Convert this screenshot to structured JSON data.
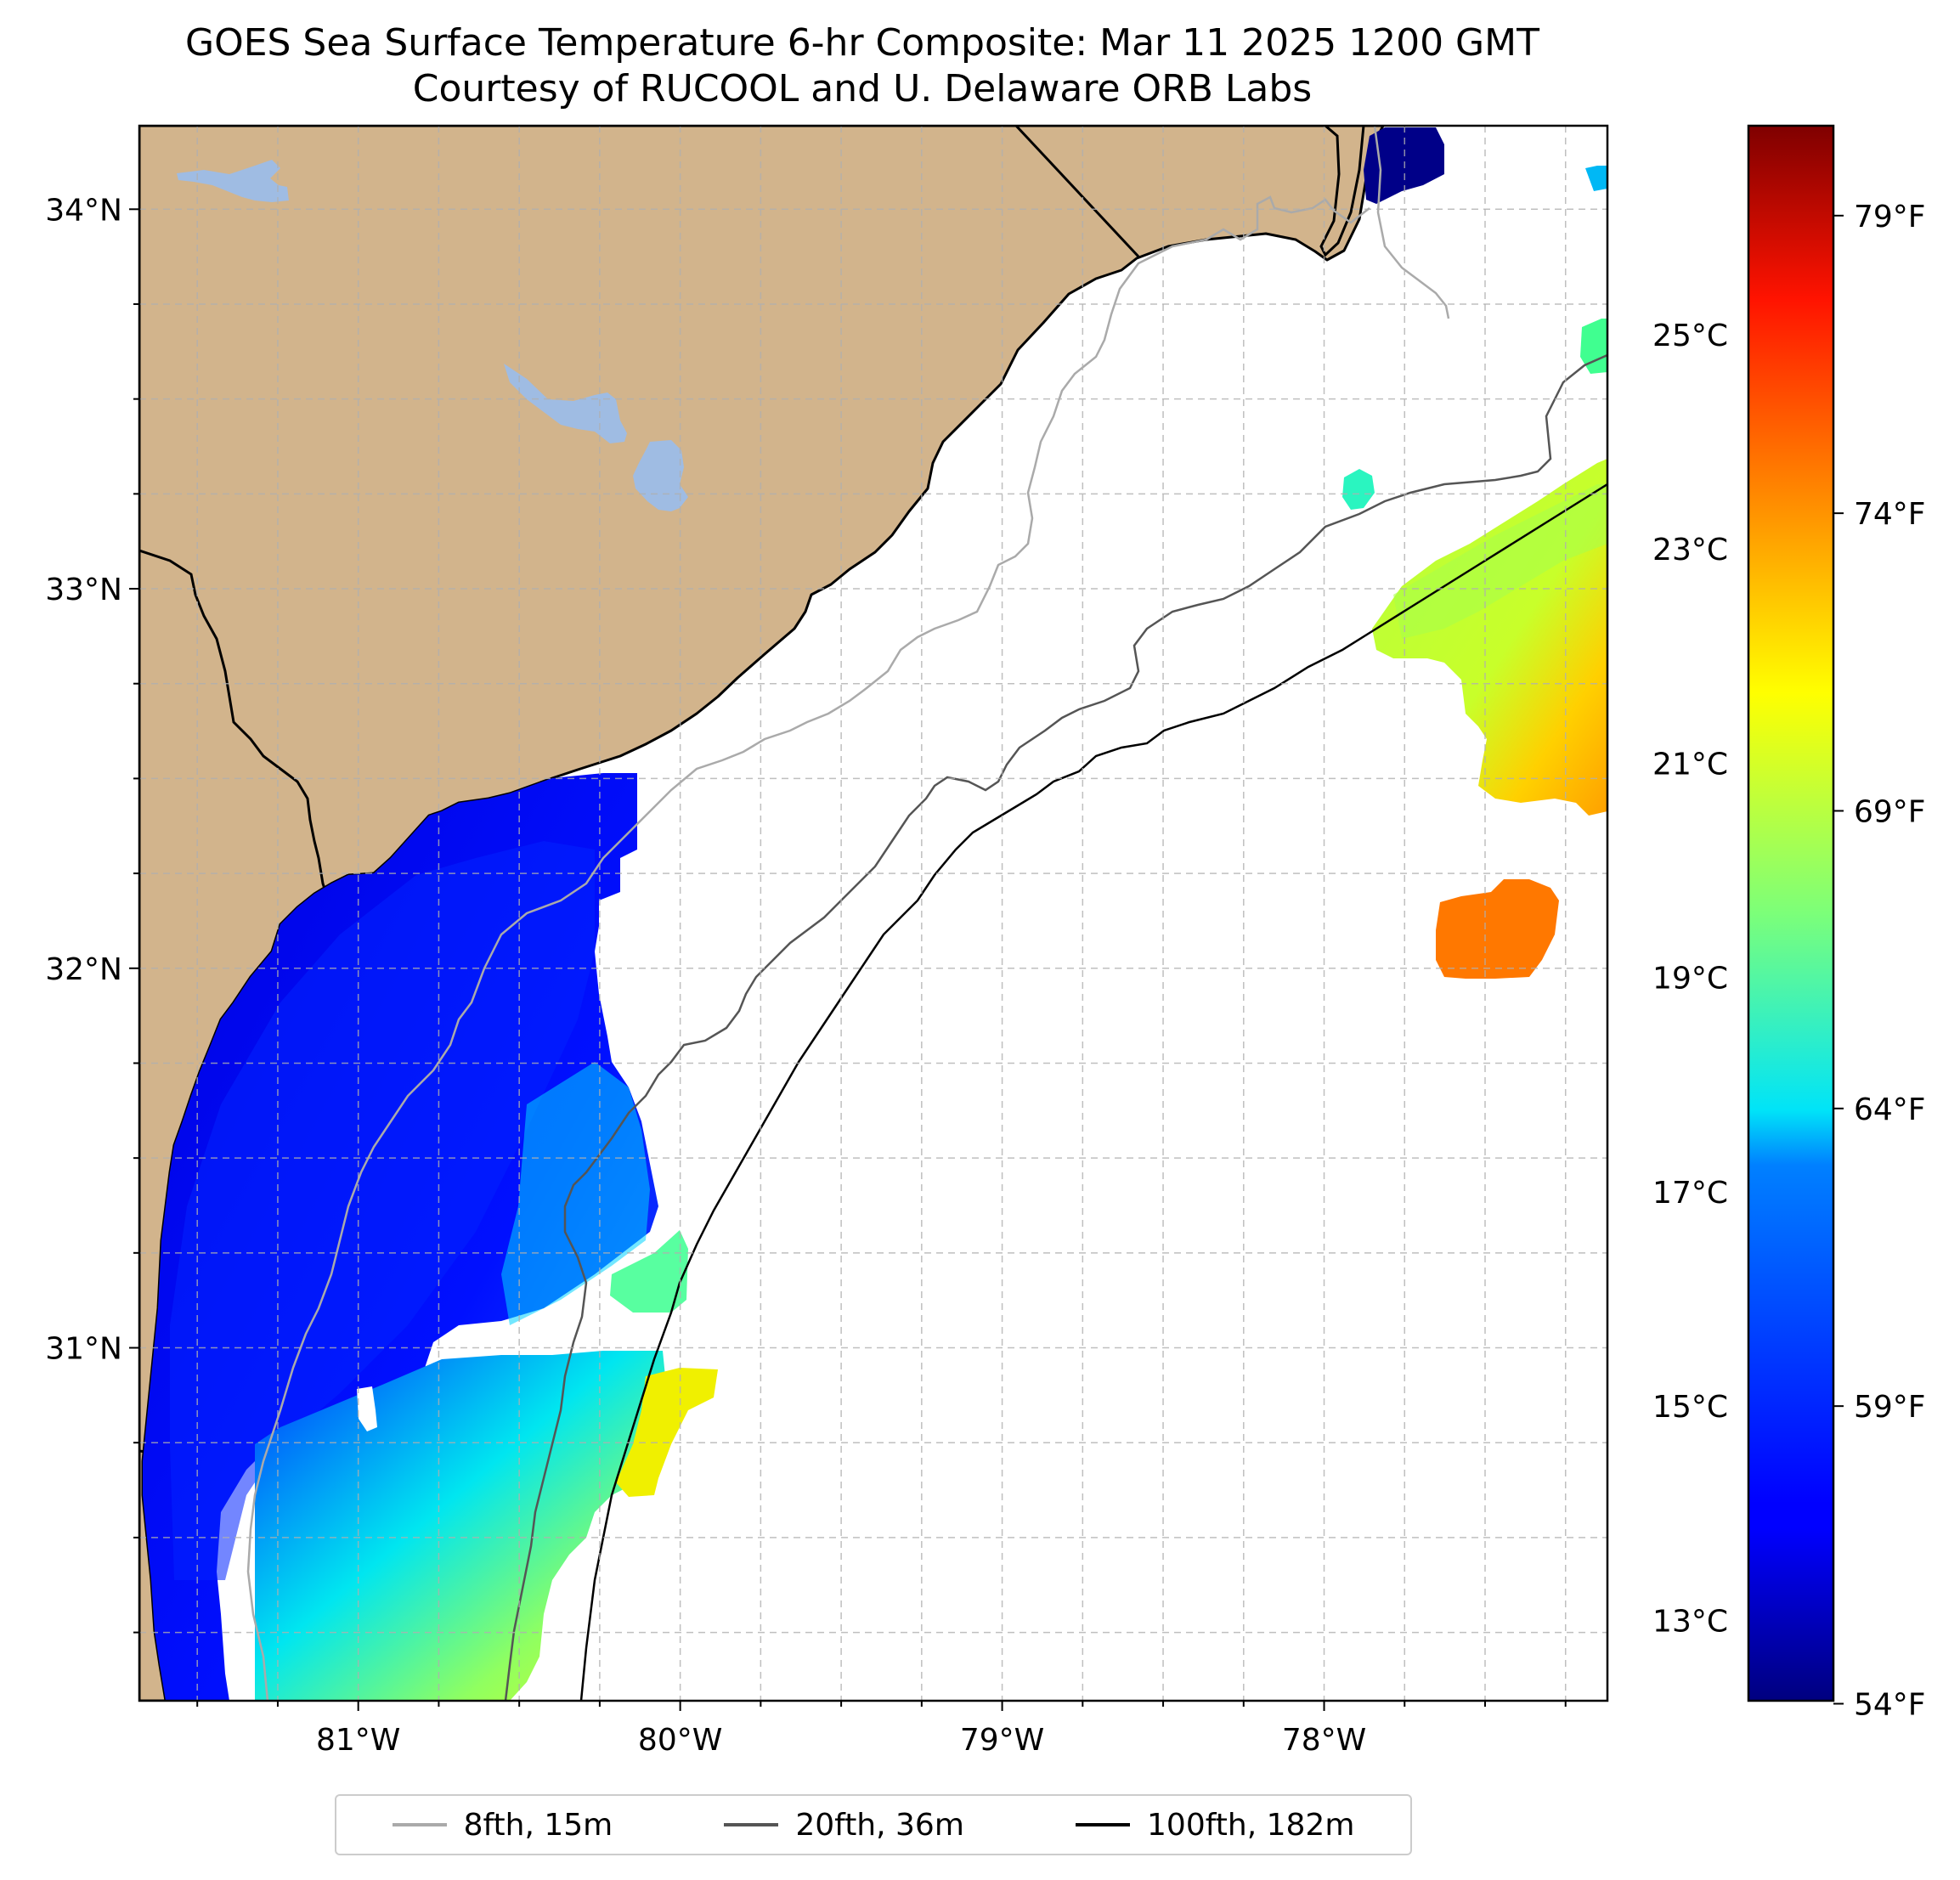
{
  "title": {
    "line1": "GOES Sea Surface Temperature 6-hr Composite: Mar 11 2025 1200 GMT",
    "line2": "Courtesy of RUCOOL and U. Delaware ORB Labs"
  },
  "map": {
    "lon_range": [
      -81.68,
      -77.12
    ],
    "lat_range": [
      30.07,
      34.22
    ],
    "lon_ticks": [
      {
        "value": -81,
        "label": "81°W"
      },
      {
        "value": -80,
        "label": "80°W"
      },
      {
        "value": -79,
        "label": "79°W"
      },
      {
        "value": -78,
        "label": "78°W"
      }
    ],
    "lat_ticks": [
      {
        "value": 34,
        "label": "34°N"
      },
      {
        "value": 33,
        "label": "33°N"
      },
      {
        "value": 32,
        "label": "32°N"
      },
      {
        "value": 31,
        "label": "31°N"
      }
    ],
    "gridlines": true,
    "colors": {
      "land": "#d2b48c",
      "lakes": "#9fbce3",
      "ocean": "#ffffff",
      "contour_8fth": "#aaaaaa",
      "contour_20fth": "#555555",
      "contour_100fth": "#000000"
    }
  },
  "colorbar": {
    "colormap": "jet",
    "celsius_range": [
      12.25,
      26.95
    ],
    "celsius_ticks": [
      {
        "value": 13,
        "label": "13°C"
      },
      {
        "value": 15,
        "label": "15°C"
      },
      {
        "value": 17,
        "label": "17°C"
      },
      {
        "value": 19,
        "label": "19°C"
      },
      {
        "value": 21,
        "label": "21°C"
      },
      {
        "value": 23,
        "label": "23°C"
      },
      {
        "value": 25,
        "label": "25°C"
      }
    ],
    "fahrenheit_ticks": [
      {
        "value": 54,
        "label": "54°F"
      },
      {
        "value": 59,
        "label": "59°F"
      },
      {
        "value": 64,
        "label": "64°F"
      },
      {
        "value": 69,
        "label": "69°F"
      },
      {
        "value": 74,
        "label": "74°F"
      },
      {
        "value": 79,
        "label": "79°F"
      }
    ]
  },
  "legend": {
    "items": [
      {
        "label": "8fth, 15m",
        "color": "#aaaaaa"
      },
      {
        "label": "20fth, 36m",
        "color": "#555555"
      },
      {
        "label": "100fth, 182m",
        "color": "#000000"
      }
    ]
  }
}
